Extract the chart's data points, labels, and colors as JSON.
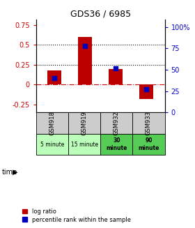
{
  "title": "GDS36 / 6985",
  "samples": [
    "GSM918",
    "GSM919",
    "GSM932",
    "GSM933"
  ],
  "time_labels": [
    "5 minute",
    "15 minute",
    "30\nminute",
    "90\nminute"
  ],
  "time_bold": [
    false,
    false,
    true,
    true
  ],
  "time_bg_colors": [
    "#bbffbb",
    "#bbffbb",
    "#55cc55",
    "#55cc55"
  ],
  "sample_bg_color": "#cccccc",
  "log_ratios": [
    0.18,
    0.6,
    0.2,
    -0.18
  ],
  "percentile_ranks": [
    40,
    78,
    52,
    27
  ],
  "bar_color": "#bb0000",
  "dot_color": "#0000bb",
  "ylim_left": [
    -0.35,
    0.82
  ],
  "ylim_right": [
    0,
    109
  ],
  "yticks_left": [
    -0.25,
    0,
    0.25,
    0.5,
    0.75
  ],
  "ytick_labels_left": [
    "-0.25",
    "0",
    "0.25",
    "0.5",
    "0.75"
  ],
  "yticks_right": [
    0,
    25,
    50,
    75,
    100
  ],
  "ytick_labels_right": [
    "0",
    "25",
    "50",
    "75",
    "100%"
  ],
  "hlines": [
    0.25,
    0.5
  ],
  "zero_line": 0.0,
  "bar_width": 0.45,
  "dot_size": 22,
  "legend_items": [
    "log ratio",
    "percentile rank within the sample"
  ]
}
